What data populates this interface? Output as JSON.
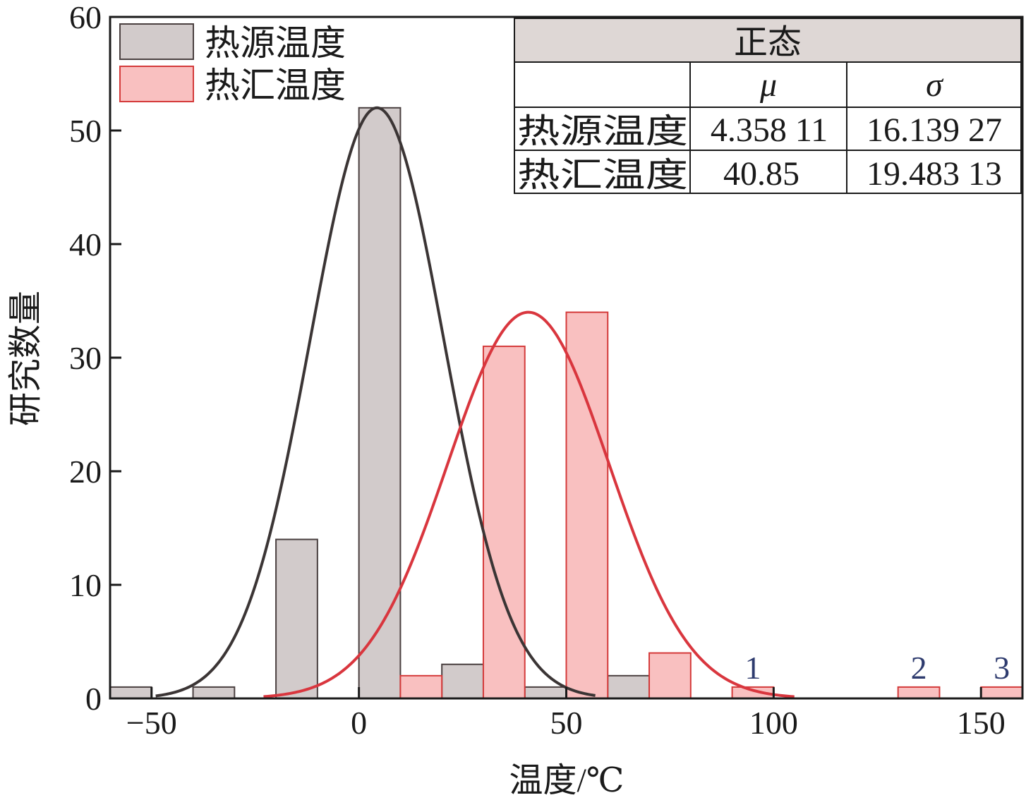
{
  "chart_data": {
    "type": "bar",
    "xlabel": "温度/℃",
    "ylabel": "研究数量",
    "xlim": [
      -60,
      160
    ],
    "ylim": [
      0,
      60
    ],
    "x_ticks": [
      -50,
      0,
      50,
      100,
      150
    ],
    "x_tick_labels": [
      "−50",
      "0",
      "50",
      "100",
      "150"
    ],
    "y_ticks": [
      0,
      10,
      20,
      30,
      40,
      50,
      60
    ],
    "y_tick_labels": [
      "0",
      "10",
      "20",
      "30",
      "40",
      "50",
      "60"
    ],
    "grid": false,
    "legend_position": "top-left",
    "bin_width": 10,
    "series": [
      {
        "name": "热源温度",
        "color_fill": "#d2cbcb",
        "color_edge": "#4a4040",
        "curve_color": "#3b3535",
        "bins": [
          {
            "x0": -60,
            "x1": -50,
            "count": 1
          },
          {
            "x0": -40,
            "x1": -30,
            "count": 1
          },
          {
            "x0": -20,
            "x1": -10,
            "count": 14
          },
          {
            "x0": 0,
            "x1": 10,
            "count": 52
          },
          {
            "x0": 20,
            "x1": 30,
            "count": 3
          },
          {
            "x0": 40,
            "x1": 50,
            "count": 1
          },
          {
            "x0": 60,
            "x1": 70,
            "count": 2
          }
        ],
        "fit": {
          "mu": 4.35811,
          "sigma": 16.13927,
          "peak": 52,
          "x_from": -49,
          "x_to": 57
        }
      },
      {
        "name": "热汇温度",
        "color_fill": "#f9c0c0",
        "color_edge": "#d43a3a",
        "curve_color": "#d9363e",
        "bins": [
          {
            "x0": 10,
            "x1": 20,
            "count": 2
          },
          {
            "x0": 30,
            "x1": 40,
            "count": 31
          },
          {
            "x0": 50,
            "x1": 60,
            "count": 34
          },
          {
            "x0": 70,
            "x1": 80,
            "count": 4
          },
          {
            "x0": 90,
            "x1": 100,
            "count": 1
          },
          {
            "x0": 130,
            "x1": 140,
            "count": 1
          },
          {
            "x0": 150,
            "x1": 160,
            "count": 1
          }
        ],
        "fit": {
          "mu": 40.85,
          "sigma": 19.48313,
          "peak": 34,
          "x_from": -23,
          "x_to": 105
        }
      }
    ],
    "annotations": [
      {
        "text": "1",
        "x": 95,
        "y": 1
      },
      {
        "text": "2",
        "x": 135,
        "y": 1
      },
      {
        "text": "3",
        "x": 155,
        "y": 1
      }
    ],
    "stats_table": {
      "title": "正态",
      "col_headers": [
        "",
        "μ",
        "σ"
      ],
      "rows": [
        [
          "热源温度",
          "4.358 11",
          "16.139 27"
        ],
        [
          "热汇温度",
          "40.85",
          "19.483 13"
        ]
      ]
    }
  }
}
